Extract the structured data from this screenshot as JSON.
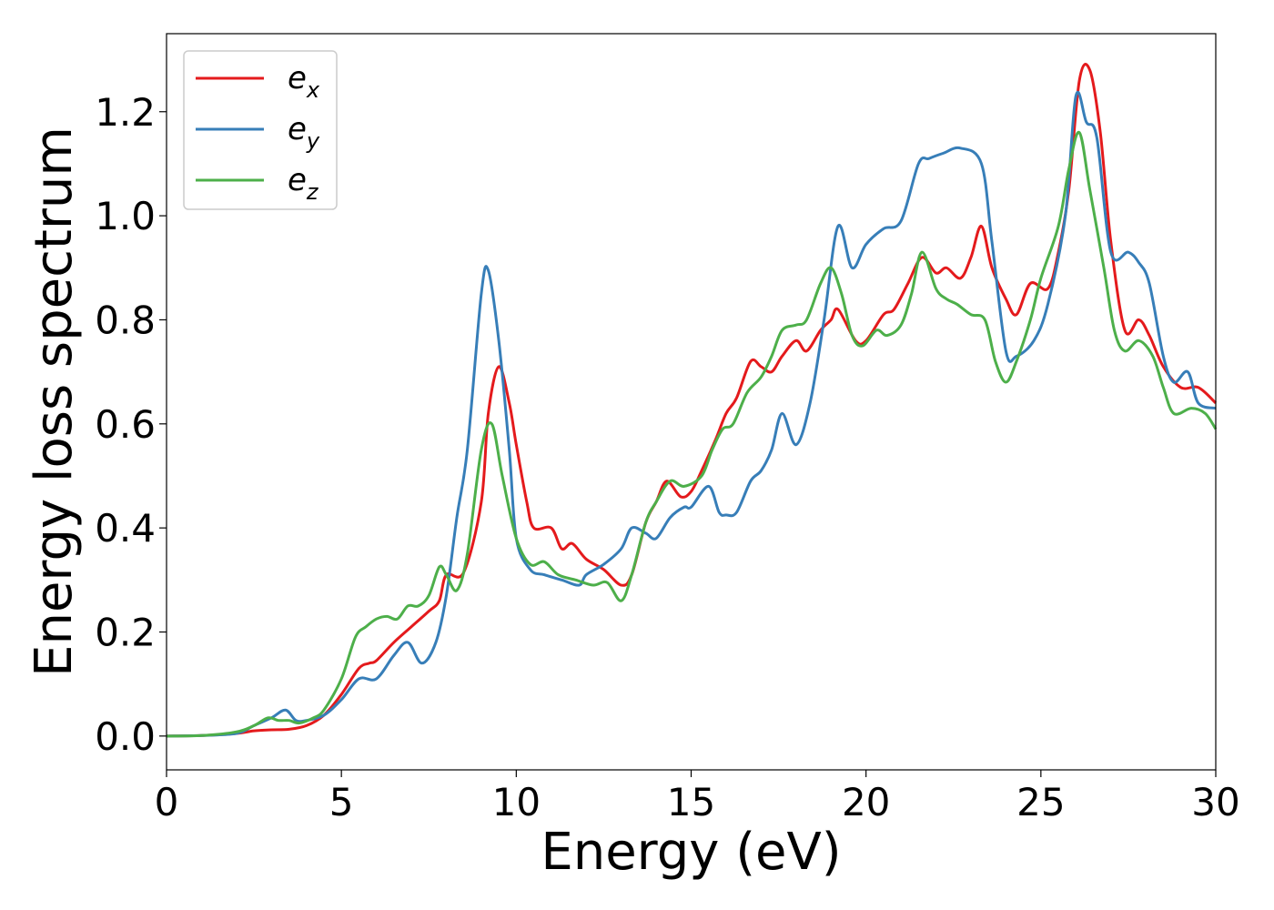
{
  "chart_data": {
    "type": "line",
    "title": "",
    "xlabel": "Energy (eV)",
    "ylabel": "Energy loss spectrum",
    "xlim": [
      0,
      30
    ],
    "ylim": [
      -0.065,
      1.35
    ],
    "xticks": [
      "0",
      "5",
      "10",
      "15",
      "20",
      "25",
      "30"
    ],
    "yticks": [
      "0.0",
      "0.2",
      "0.4",
      "0.6",
      "0.8",
      "1.0",
      "1.2"
    ],
    "grid": false,
    "legend_position": "top-left",
    "series": [
      {
        "name": "e_x",
        "label_base": "e",
        "label_sub": "x",
        "color": "#e41a1c",
        "points": [
          [
            0,
            0
          ],
          [
            1,
            0.001
          ],
          [
            2,
            0.005
          ],
          [
            2.5,
            0.01
          ],
          [
            3,
            0.012
          ],
          [
            3.5,
            0.013
          ],
          [
            4,
            0.02
          ],
          [
            4.5,
            0.04
          ],
          [
            5,
            0.08
          ],
          [
            5.5,
            0.13
          ],
          [
            5.8,
            0.14
          ],
          [
            6,
            0.145
          ],
          [
            6.5,
            0.18
          ],
          [
            7,
            0.21
          ],
          [
            7.5,
            0.24
          ],
          [
            7.8,
            0.26
          ],
          [
            8,
            0.31
          ],
          [
            8.5,
            0.315
          ],
          [
            9,
            0.45
          ],
          [
            9.2,
            0.62
          ],
          [
            9.5,
            0.71
          ],
          [
            9.8,
            0.64
          ],
          [
            10,
            0.56
          ],
          [
            10.3,
            0.45
          ],
          [
            10.5,
            0.4
          ],
          [
            11,
            0.4
          ],
          [
            11.3,
            0.36
          ],
          [
            11.6,
            0.37
          ],
          [
            12,
            0.34
          ],
          [
            12.5,
            0.32
          ],
          [
            13,
            0.29
          ],
          [
            13.3,
            0.31
          ],
          [
            13.7,
            0.41
          ],
          [
            14,
            0.45
          ],
          [
            14.3,
            0.49
          ],
          [
            14.7,
            0.46
          ],
          [
            15,
            0.47
          ],
          [
            15.3,
            0.51
          ],
          [
            15.7,
            0.57
          ],
          [
            16,
            0.62
          ],
          [
            16.3,
            0.65
          ],
          [
            16.7,
            0.72
          ],
          [
            17,
            0.71
          ],
          [
            17.3,
            0.7
          ],
          [
            17.6,
            0.73
          ],
          [
            18,
            0.76
          ],
          [
            18.3,
            0.74
          ],
          [
            18.7,
            0.78
          ],
          [
            19,
            0.8
          ],
          [
            19.2,
            0.82
          ],
          [
            19.7,
            0.76
          ],
          [
            20,
            0.76
          ],
          [
            20.5,
            0.81
          ],
          [
            20.8,
            0.82
          ],
          [
            21.2,
            0.87
          ],
          [
            21.6,
            0.92
          ],
          [
            22,
            0.89
          ],
          [
            22.3,
            0.9
          ],
          [
            22.7,
            0.88
          ],
          [
            23,
            0.92
          ],
          [
            23.3,
            0.98
          ],
          [
            23.6,
            0.9
          ],
          [
            24,
            0.84
          ],
          [
            24.3,
            0.81
          ],
          [
            24.7,
            0.87
          ],
          [
            25.2,
            0.86
          ],
          [
            25.5,
            0.93
          ],
          [
            25.8,
            1.05
          ],
          [
            26.1,
            1.26
          ],
          [
            26.4,
            1.28
          ],
          [
            26.7,
            1.16
          ],
          [
            27,
            0.95
          ],
          [
            27.4,
            0.78
          ],
          [
            27.8,
            0.8
          ],
          [
            28.1,
            0.77
          ],
          [
            28.5,
            0.71
          ],
          [
            29,
            0.67
          ],
          [
            29.5,
            0.67
          ],
          [
            30,
            0.64
          ]
        ]
      },
      {
        "name": "e_y",
        "label_base": "e",
        "label_sub": "y",
        "color": "#377eb8",
        "points": [
          [
            0,
            0
          ],
          [
            1,
            0.001
          ],
          [
            2,
            0.005
          ],
          [
            2.5,
            0.02
          ],
          [
            3,
            0.035
          ],
          [
            3.4,
            0.05
          ],
          [
            3.7,
            0.03
          ],
          [
            4,
            0.03
          ],
          [
            4.5,
            0.04
          ],
          [
            5,
            0.07
          ],
          [
            5.5,
            0.11
          ],
          [
            6,
            0.11
          ],
          [
            6.5,
            0.155
          ],
          [
            6.9,
            0.18
          ],
          [
            7.3,
            0.14
          ],
          [
            7.7,
            0.18
          ],
          [
            8,
            0.27
          ],
          [
            8.3,
            0.42
          ],
          [
            8.6,
            0.55
          ],
          [
            9,
            0.85
          ],
          [
            9.2,
            0.895
          ],
          [
            9.5,
            0.76
          ],
          [
            9.8,
            0.55
          ],
          [
            10,
            0.38
          ],
          [
            10.4,
            0.32
          ],
          [
            10.8,
            0.31
          ],
          [
            11.3,
            0.3
          ],
          [
            11.8,
            0.29
          ],
          [
            12,
            0.31
          ],
          [
            12.5,
            0.33
          ],
          [
            13,
            0.36
          ],
          [
            13.3,
            0.4
          ],
          [
            13.7,
            0.39
          ],
          [
            14,
            0.38
          ],
          [
            14.4,
            0.42
          ],
          [
            14.8,
            0.44
          ],
          [
            15,
            0.44
          ],
          [
            15.5,
            0.48
          ],
          [
            15.8,
            0.43
          ],
          [
            16,
            0.425
          ],
          [
            16.3,
            0.43
          ],
          [
            16.7,
            0.49
          ],
          [
            17,
            0.51
          ],
          [
            17.3,
            0.55
          ],
          [
            17.6,
            0.62
          ],
          [
            18,
            0.56
          ],
          [
            18.4,
            0.64
          ],
          [
            18.8,
            0.8
          ],
          [
            19.2,
            0.98
          ],
          [
            19.6,
            0.9
          ],
          [
            20,
            0.945
          ],
          [
            20.5,
            0.975
          ],
          [
            21,
            0.99
          ],
          [
            21.5,
            1.1
          ],
          [
            21.8,
            1.11
          ],
          [
            22.2,
            1.12
          ],
          [
            22.7,
            1.13
          ],
          [
            23.3,
            1.1
          ],
          [
            23.6,
            0.95
          ],
          [
            24,
            0.74
          ],
          [
            24.3,
            0.73
          ],
          [
            24.8,
            0.76
          ],
          [
            25.2,
            0.83
          ],
          [
            25.7,
            1.0
          ],
          [
            26,
            1.23
          ],
          [
            26.3,
            1.18
          ],
          [
            26.6,
            1.15
          ],
          [
            27,
            0.93
          ],
          [
            27.5,
            0.93
          ],
          [
            27.8,
            0.91
          ],
          [
            28.1,
            0.87
          ],
          [
            28.5,
            0.73
          ],
          [
            28.8,
            0.68
          ],
          [
            29.2,
            0.7
          ],
          [
            29.5,
            0.64
          ],
          [
            30,
            0.63
          ]
        ]
      },
      {
        "name": "e_z",
        "label_base": "e",
        "label_sub": "z",
        "color": "#4daf4a",
        "points": [
          [
            0,
            0
          ],
          [
            1,
            0.001
          ],
          [
            2,
            0.008
          ],
          [
            2.5,
            0.02
          ],
          [
            2.9,
            0.035
          ],
          [
            3.2,
            0.03
          ],
          [
            3.5,
            0.03
          ],
          [
            3.8,
            0.025
          ],
          [
            4.2,
            0.035
          ],
          [
            4.5,
            0.05
          ],
          [
            5,
            0.11
          ],
          [
            5.4,
            0.19
          ],
          [
            5.7,
            0.21
          ],
          [
            6,
            0.225
          ],
          [
            6.3,
            0.23
          ],
          [
            6.6,
            0.225
          ],
          [
            6.9,
            0.25
          ],
          [
            7.2,
            0.25
          ],
          [
            7.5,
            0.27
          ],
          [
            7.8,
            0.325
          ],
          [
            8,
            0.31
          ],
          [
            8.3,
            0.28
          ],
          [
            8.6,
            0.35
          ],
          [
            9,
            0.55
          ],
          [
            9.3,
            0.6
          ],
          [
            9.6,
            0.5
          ],
          [
            10,
            0.38
          ],
          [
            10.4,
            0.33
          ],
          [
            10.8,
            0.335
          ],
          [
            11.2,
            0.31
          ],
          [
            11.7,
            0.3
          ],
          [
            12.2,
            0.29
          ],
          [
            12.6,
            0.295
          ],
          [
            13,
            0.26
          ],
          [
            13.3,
            0.31
          ],
          [
            13.7,
            0.41
          ],
          [
            14,
            0.45
          ],
          [
            14.4,
            0.49
          ],
          [
            14.8,
            0.48
          ],
          [
            15.3,
            0.5
          ],
          [
            15.6,
            0.55
          ],
          [
            15.9,
            0.59
          ],
          [
            16.2,
            0.6
          ],
          [
            16.6,
            0.66
          ],
          [
            17,
            0.69
          ],
          [
            17.3,
            0.73
          ],
          [
            17.6,
            0.78
          ],
          [
            18,
            0.79
          ],
          [
            18.3,
            0.8
          ],
          [
            18.7,
            0.87
          ],
          [
            19,
            0.9
          ],
          [
            19.3,
            0.85
          ],
          [
            19.6,
            0.77
          ],
          [
            19.9,
            0.75
          ],
          [
            20.3,
            0.78
          ],
          [
            20.6,
            0.77
          ],
          [
            21,
            0.79
          ],
          [
            21.3,
            0.85
          ],
          [
            21.6,
            0.93
          ],
          [
            22,
            0.86
          ],
          [
            22.3,
            0.84
          ],
          [
            22.6,
            0.83
          ],
          [
            23,
            0.81
          ],
          [
            23.4,
            0.8
          ],
          [
            23.7,
            0.72
          ],
          [
            24,
            0.68
          ],
          [
            24.3,
            0.72
          ],
          [
            24.7,
            0.8
          ],
          [
            25,
            0.88
          ],
          [
            25.5,
            0.98
          ],
          [
            25.8,
            1.09
          ],
          [
            26.1,
            1.16
          ],
          [
            26.4,
            1.05
          ],
          [
            26.8,
            0.9
          ],
          [
            27.1,
            0.78
          ],
          [
            27.4,
            0.74
          ],
          [
            27.8,
            0.76
          ],
          [
            28.2,
            0.73
          ],
          [
            28.5,
            0.67
          ],
          [
            28.8,
            0.62
          ],
          [
            29.3,
            0.63
          ],
          [
            29.7,
            0.62
          ],
          [
            30,
            0.59
          ]
        ]
      }
    ]
  }
}
